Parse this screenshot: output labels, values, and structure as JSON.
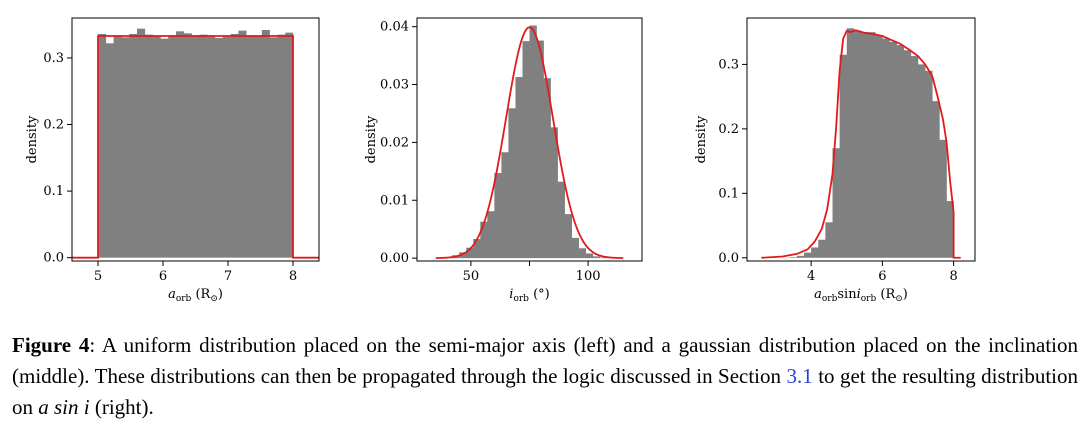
{
  "chart_data": [
    {
      "type": "bar",
      "variant": "histogram",
      "xlabel": "a_orb (R_⊙)",
      "xlabel_parts": {
        "main": "a",
        "sub": "orb",
        "unit": " (R",
        "unit_sub": "⊙",
        "close": ")"
      },
      "ylabel": "density",
      "xlim": [
        4.6,
        8.4
      ],
      "ylim": [
        -0.005,
        0.36
      ],
      "xticks": [
        5,
        6,
        7,
        8
      ],
      "xtick_labels": [
        "5",
        "6",
        "7",
        "8"
      ],
      "yticks": [
        0.0,
        0.1,
        0.2,
        0.3
      ],
      "ytick_labels": [
        "0.0",
        "0.1",
        "0.2",
        "0.3"
      ],
      "grid": false,
      "bin_edges": [
        5.0,
        5.12,
        5.24,
        5.36,
        5.48,
        5.6,
        5.72,
        5.84,
        5.96,
        6.08,
        6.2,
        6.32,
        6.44,
        6.56,
        6.68,
        6.8,
        6.92,
        7.04,
        7.16,
        7.28,
        7.4,
        7.52,
        7.64,
        7.76,
        7.88,
        8.0
      ],
      "values": [
        0.336,
        0.322,
        0.333,
        0.331,
        0.336,
        0.344,
        0.335,
        0.333,
        0.329,
        0.334,
        0.34,
        0.337,
        0.334,
        0.335,
        0.332,
        0.33,
        0.332,
        0.336,
        0.341,
        0.334,
        0.333,
        0.342,
        0.331,
        0.335,
        0.338
      ],
      "model_line": {
        "x": [
          4.6,
          5.0,
          5.0,
          8.0,
          8.0,
          8.4
        ],
        "y": [
          0,
          0,
          0.333,
          0.333,
          0,
          0
        ],
        "color": "#e31a1c"
      },
      "bar_color": "#808080"
    },
    {
      "type": "bar",
      "variant": "histogram",
      "xlabel": "i_orb (°)",
      "xlabel_parts": {
        "main": "i",
        "sub": "orb",
        "unit": " (°)"
      },
      "ylabel": "density",
      "xlim": [
        27,
        123
      ],
      "ylim": [
        -0.0005,
        0.0415
      ],
      "xticks": [
        50,
        75,
        100
      ],
      "xtick_labels": [
        "50",
        "",
        "100"
      ],
      "yticks": [
        0.0,
        0.01,
        0.02,
        0.03,
        0.04
      ],
      "ytick_labels": [
        "0.00",
        "0.01",
        "0.02",
        "0.03",
        "0.04"
      ],
      "grid": false,
      "bin_edges": [
        39,
        42,
        45,
        48,
        51,
        54,
        57,
        60,
        63,
        66,
        69,
        72,
        75,
        78,
        81,
        84,
        87,
        90,
        93,
        96,
        99,
        102,
        105,
        108,
        111
      ],
      "values": [
        0.0002,
        0.0005,
        0.001,
        0.0018,
        0.0033,
        0.0063,
        0.0081,
        0.0147,
        0.0183,
        0.0259,
        0.0313,
        0.0375,
        0.0402,
        0.0376,
        0.0311,
        0.0226,
        0.0132,
        0.0076,
        0.0035,
        0.0017,
        0.0008,
        0.0003,
        0.0001,
        0.0001
      ],
      "model_line": {
        "type": "gaussian",
        "mean": 75,
        "sigma": 10,
        "x_range": [
          35,
          115
        ],
        "color": "#e31a1c"
      },
      "bar_color": "#808080"
    },
    {
      "type": "bar",
      "variant": "histogram",
      "xlabel": "a_orb sin i_orb (R_⊙)",
      "xlabel_parts": {
        "main": "a",
        "sub": "orb",
        "mid": "sin",
        "main2": "i",
        "sub2": "orb",
        "unit": " (R",
        "unit_sub": "⊙",
        "close": ")"
      },
      "ylabel": "density",
      "xlim": [
        2.2,
        8.6
      ],
      "ylim": [
        -0.005,
        0.372
      ],
      "xticks": [
        4,
        6,
        8
      ],
      "xtick_labels": [
        "4",
        "6",
        "8"
      ],
      "yticks": [
        0.0,
        0.1,
        0.2,
        0.3
      ],
      "ytick_labels": [
        "0.0",
        "0.1",
        "0.2",
        "0.3"
      ],
      "grid": false,
      "bin_edges": [
        3.4,
        3.6,
        3.8,
        4.0,
        4.2,
        4.4,
        4.6,
        4.8,
        5.0,
        5.2,
        5.4,
        5.6,
        5.8,
        6.0,
        6.2,
        6.4,
        6.6,
        6.8,
        7.0,
        7.2,
        7.4,
        7.6,
        7.8,
        8.0
      ],
      "values": [
        0.001,
        0.003,
        0.008,
        0.016,
        0.028,
        0.055,
        0.17,
        0.315,
        0.356,
        0.352,
        0.35,
        0.35,
        0.345,
        0.34,
        0.335,
        0.33,
        0.322,
        0.313,
        0.3,
        0.29,
        0.243,
        0.183,
        0.088
      ],
      "model_line": {
        "x": [
          2.6,
          3.2,
          3.6,
          3.9,
          4.1,
          4.3,
          4.45,
          4.6,
          4.7,
          4.8,
          4.9,
          5.0,
          5.1,
          5.25,
          5.5,
          5.75,
          6.0,
          6.25,
          6.5,
          6.75,
          7.0,
          7.2,
          7.4,
          7.55,
          7.7,
          7.8,
          7.9,
          8.0,
          8.0,
          8.2
        ],
        "y": [
          0,
          0.002,
          0.006,
          0.013,
          0.025,
          0.045,
          0.075,
          0.13,
          0.2,
          0.29,
          0.34,
          0.352,
          0.35,
          0.353,
          0.349,
          0.347,
          0.344,
          0.338,
          0.332,
          0.323,
          0.313,
          0.3,
          0.282,
          0.25,
          0.215,
          0.18,
          0.12,
          0.07,
          0,
          0
        ],
        "color": "#e31a1c"
      },
      "bar_color": "#808080"
    }
  ],
  "caption": {
    "lead": "Figure 4",
    "text1": ": A uniform distribution placed on the semi-major axis (left) and a gaussian distribution placed on the inclination (middle). These distributions can then be propagated through the logic discussed in Section ",
    "ref": "3.1",
    "text2": " to get the resulting distribution on ",
    "math": "a sin i",
    "text3": " (right)."
  }
}
